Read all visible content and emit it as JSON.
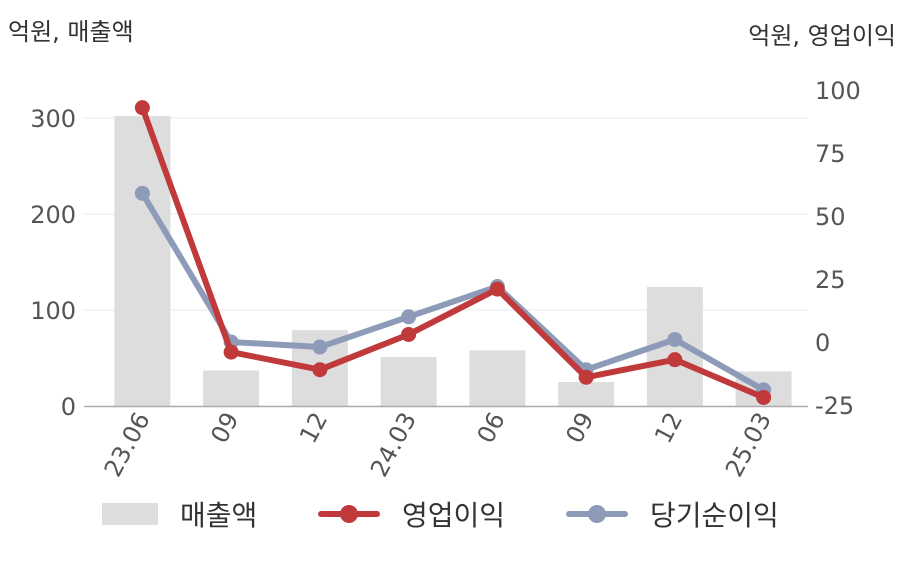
{
  "units": {
    "left": "억원, 매출액",
    "right": "억원, 영업이익"
  },
  "colors": {
    "bar": "#dddddd",
    "operating_profit": "#c0393b",
    "net_income": "#8e9bb8",
    "grid": "#e8e8e8",
    "axis": "#aaaaaa"
  },
  "legend": {
    "revenue": "매출액",
    "operating_profit": "영업이익",
    "net_income": "당기순이익"
  },
  "chart_data": {
    "type": "bar",
    "categories": [
      "23.06",
      "09",
      "12",
      "24.03",
      "06",
      "09",
      "12",
      "25.03"
    ],
    "left_axis": {
      "ylim": [
        0,
        340
      ],
      "ticks": [
        0,
        100,
        200,
        300
      ],
      "tick_labels": [
        "0",
        "100",
        "200",
        "300"
      ]
    },
    "right_axis": {
      "ylim": [
        -25,
        115
      ],
      "ticks": [
        -25,
        0,
        25,
        50,
        75,
        100
      ],
      "tick_labels": [
        "-25",
        "0",
        "25",
        "50",
        "75",
        "100"
      ]
    },
    "grid": true,
    "legend_position": "bottom",
    "series": [
      {
        "name": "매출액",
        "kind": "bar",
        "axis": "left",
        "values": [
          302,
          37,
          79,
          51,
          58,
          25,
          124,
          36
        ]
      },
      {
        "name": "영업이익",
        "kind": "line",
        "axis": "right",
        "values": [
          93,
          -4,
          -11,
          3,
          21,
          -14,
          -7,
          -22
        ]
      },
      {
        "name": "당기순이익",
        "kind": "line",
        "axis": "right",
        "values": [
          59,
          0,
          -2,
          10,
          22,
          -11,
          1,
          -19
        ]
      }
    ]
  }
}
